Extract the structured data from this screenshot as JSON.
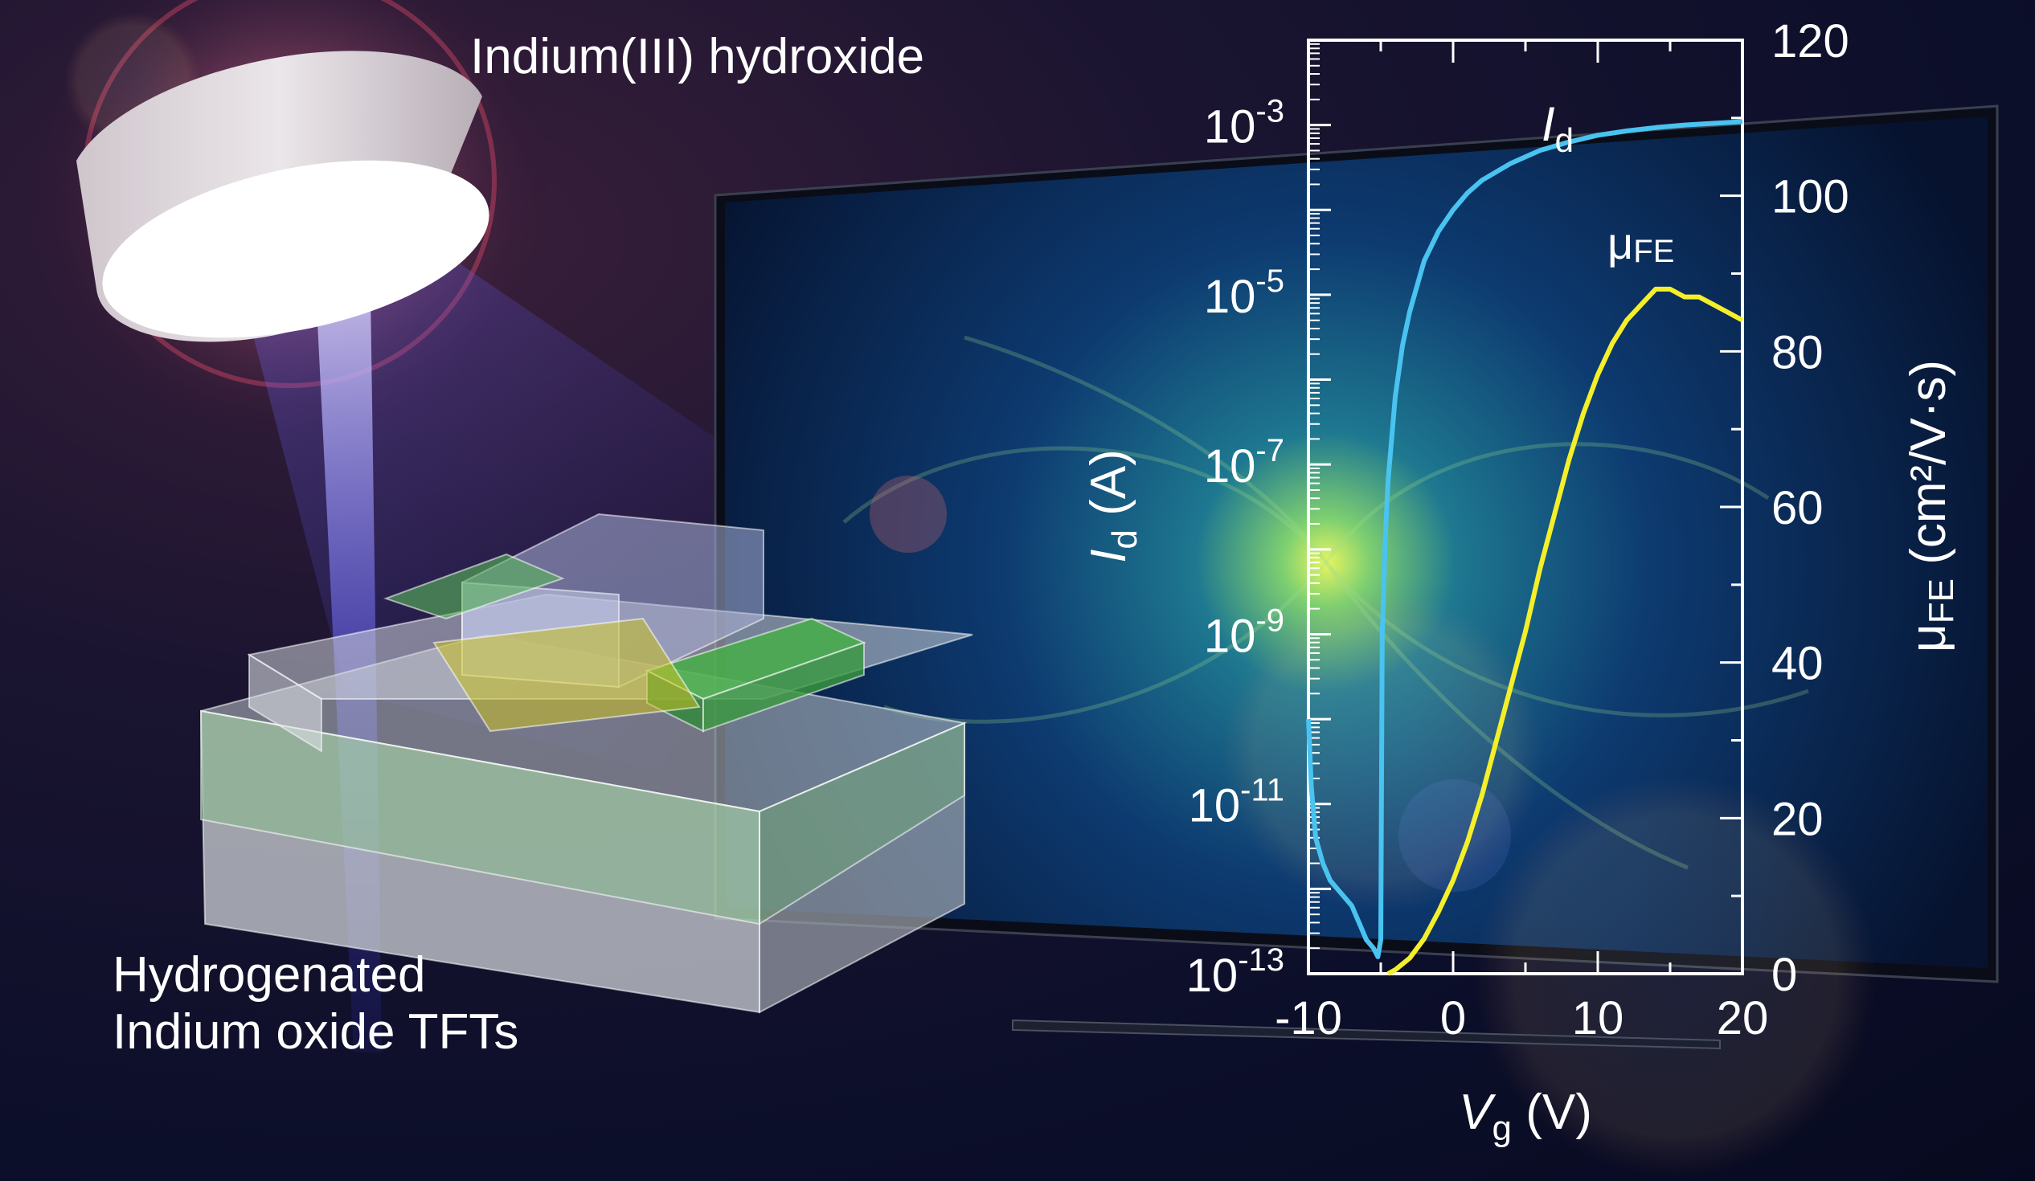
{
  "source_title": "Indium(III) hydroxide",
  "device_caption_line1": "Hydrogenated",
  "device_caption_line2": "Indium oxide TFTs",
  "colors": {
    "id_curve": "#49c3f0",
    "mu_curve": "#f5ef2a",
    "axis": "#ffffff"
  },
  "chart_data": {
    "type": "line",
    "xlabel": "V",
    "xlabel_sub": "g",
    "xlabel_unit": " (V)",
    "ylabel_left": "I",
    "ylabel_left_sub": "d",
    "ylabel_left_unit": " (A)",
    "ylabel_right": "μ",
    "ylabel_right_sub": "FE",
    "ylabel_right_unit": " (cm²/V·s)",
    "xlim": [
      -10,
      20
    ],
    "xticks": [
      -10,
      0,
      10,
      20
    ],
    "y_left_scale": "log",
    "y_left_lim_exp": [
      -13,
      -2
    ],
    "y_left_ticks": [
      "10-3",
      "10-5",
      "10-7",
      "10-9",
      "10-11",
      "10-13"
    ],
    "y_right_lim": [
      0,
      120
    ],
    "y_right_ticks": [
      0,
      20,
      40,
      60,
      80,
      100,
      120
    ],
    "series": [
      {
        "name": "I",
        "name_sub": "d",
        "axis": "left",
        "x": [
          -10,
          -9.8,
          -9.5,
          -9,
          -8.5,
          -8,
          -7.5,
          -7,
          -6.5,
          -6,
          -5.5,
          -5.2,
          -5.0,
          -4.9,
          -4.7,
          -4.5,
          -4,
          -3.5,
          -3,
          -2.5,
          -2,
          -1,
          0,
          1,
          2,
          4,
          6,
          8,
          10,
          12,
          14,
          16,
          18,
          20
        ],
        "y_log": [
          -10.0,
          -10.8,
          -11.4,
          -11.7,
          -11.9,
          -12.0,
          -12.1,
          -12.2,
          -12.4,
          -12.6,
          -12.7,
          -12.8,
          -12.6,
          -9.0,
          -7.9,
          -7.2,
          -6.2,
          -5.6,
          -5.2,
          -4.9,
          -4.6,
          -4.25,
          -4.0,
          -3.8,
          -3.65,
          -3.45,
          -3.3,
          -3.2,
          -3.12,
          -3.07,
          -3.03,
          -3.0,
          -2.98,
          -2.96
        ]
      },
      {
        "name": "μ",
        "name_sub": "FE",
        "axis": "right",
        "x": [
          -4.5,
          -4,
          -3,
          -2,
          -1,
          0,
          1,
          2,
          3,
          4,
          5,
          6,
          7,
          8,
          9,
          10,
          11,
          12,
          13,
          14,
          15,
          16,
          17,
          18,
          19,
          20
        ],
        "y": [
          0,
          0.5,
          2,
          4.5,
          8,
          12,
          17,
          23,
          30,
          37,
          44,
          52,
          59,
          66,
          72,
          77,
          81,
          84,
          86,
          88,
          88,
          87,
          87,
          86,
          85,
          84
        ]
      }
    ]
  }
}
